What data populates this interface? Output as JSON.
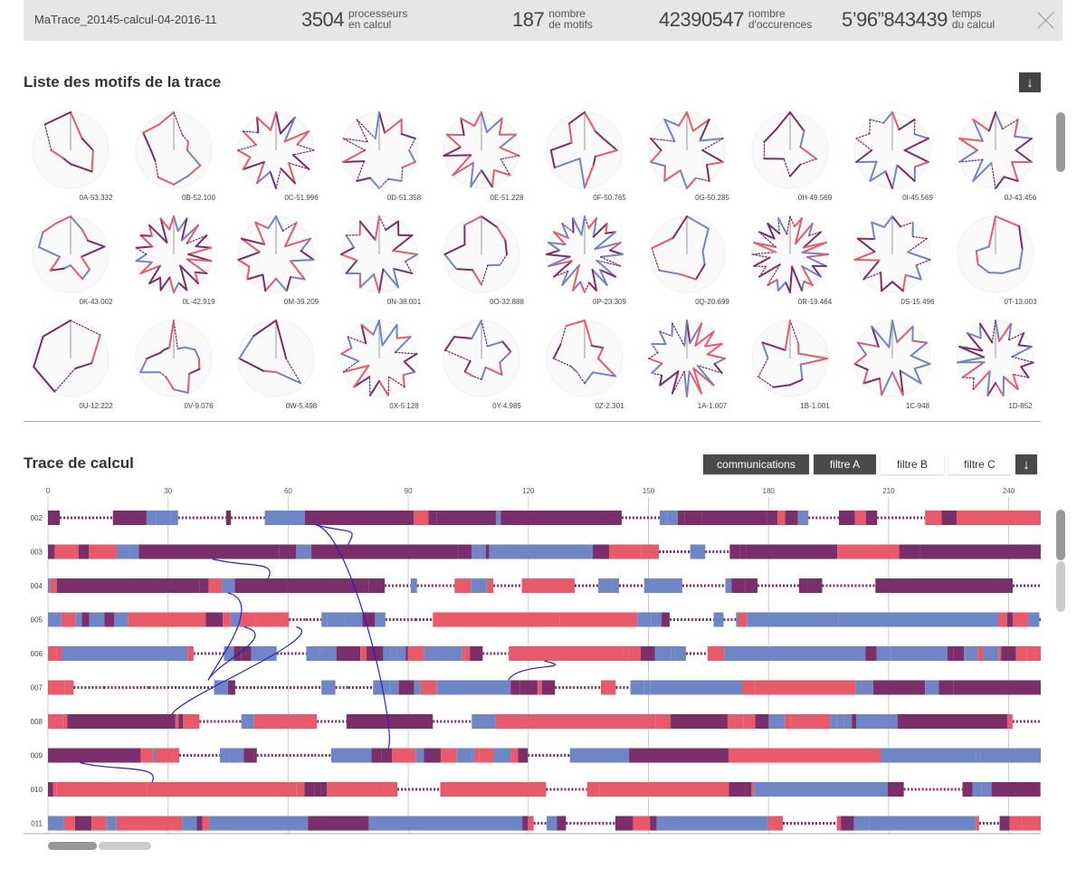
{
  "header": {
    "trace_name": "MaTrace_20145-calcul-04-2016-11",
    "stats": [
      {
        "value": "3504",
        "label_line1": "processeurs",
        "label_line2": "en calcul"
      },
      {
        "value": "187",
        "label_line1": "nombre",
        "label_line2": "de motifs"
      },
      {
        "value": "42390547",
        "label_line1": "nombre",
        "label_line2": "d'occurences"
      },
      {
        "value": "5’96”843439",
        "label_line1": "temps",
        "label_line2": "du calcul"
      }
    ],
    "close_icon": "close-x-icon"
  },
  "motifs_section": {
    "title": "Liste des motifs de la trace",
    "download_icon": "arrow-down-icon",
    "download_glyph": "↓",
    "scroll_position": 0.1,
    "motifs": [
      {
        "label": "0A-53.332",
        "spikes": 8
      },
      {
        "label": "0B-52.100",
        "spikes": 12
      },
      {
        "label": "0C-51.996",
        "spikes": 24
      },
      {
        "label": "0D-51.358",
        "spikes": 20
      },
      {
        "label": "0E-51.228",
        "spikes": 22
      },
      {
        "label": "0F-50.765",
        "spikes": 12
      },
      {
        "label": "0G-50.285",
        "spikes": 20
      },
      {
        "label": "0H-49.569",
        "spikes": 10
      },
      {
        "label": "0I-45.569",
        "spikes": 20
      },
      {
        "label": "0J-43.456",
        "spikes": 20
      },
      {
        "label": "0K-43.002",
        "spikes": 14
      },
      {
        "label": "0L-42.919",
        "spikes": 36
      },
      {
        "label": "0M-39.209",
        "spikes": 22
      },
      {
        "label": "0N-38.001",
        "spikes": 24
      },
      {
        "label": "0O-32.888",
        "spikes": 12
      },
      {
        "label": "0P-23.309",
        "spikes": 40
      },
      {
        "label": "0Q-20.699",
        "spikes": 9
      },
      {
        "label": "0R-19.464",
        "spikes": 40
      },
      {
        "label": "0S-15.496",
        "spikes": 22
      },
      {
        "label": "0T-13.003",
        "spikes": 9
      },
      {
        "label": "0U-12.222",
        "spikes": 7
      },
      {
        "label": "0V-9.076",
        "spikes": 16
      },
      {
        "label": "0W-5.498",
        "spikes": 8
      },
      {
        "label": "0X-5.128",
        "spikes": 26
      },
      {
        "label": "0Y-4.985",
        "spikes": 14
      },
      {
        "label": "0Z-2.301",
        "spikes": 12
      },
      {
        "label": "1A-1.007",
        "spikes": 32
      },
      {
        "label": "1B-1.001",
        "spikes": 12
      },
      {
        "label": "1C-948",
        "spikes": 22
      },
      {
        "label": "1D-852",
        "spikes": 30
      }
    ]
  },
  "trace_section": {
    "title": "Trace de calcul",
    "filters": [
      {
        "label": "communications",
        "active": true
      },
      {
        "label": "filtre A",
        "active": true
      },
      {
        "label": "filtre B",
        "active": false
      },
      {
        "label": "filtre C",
        "active": false
      }
    ],
    "download_glyph": "↓",
    "x_ticks": [
      "0",
      "30",
      "60",
      "90",
      "120",
      "150",
      "180",
      "210",
      "240"
    ],
    "x_max": 248,
    "rows": [
      "002",
      "003",
      "004",
      "005",
      "006",
      "007",
      "008",
      "009",
      "010",
      "011"
    ],
    "colors": {
      "red": "#e85a6a",
      "blue": "#6f86c6",
      "purple": "#7a2e6a",
      "link": "#2222cc",
      "grid": "#cccccc"
    },
    "vscroll_position": 0.0,
    "hscroll_position": 0.0,
    "communications": [
      {
        "from_row": "002",
        "from_t": 67,
        "to_row": "003",
        "to_t": 75
      },
      {
        "from_row": "002",
        "from_t": 67,
        "to_row": "009",
        "to_t": 85
      },
      {
        "from_row": "003",
        "from_t": 41,
        "to_row": "004",
        "to_t": 55
      },
      {
        "from_row": "004",
        "from_t": 45,
        "to_row": "007",
        "to_t": 40
      },
      {
        "from_row": "005",
        "from_t": 49,
        "to_row": "007",
        "to_t": 40
      },
      {
        "from_row": "005",
        "from_t": 62,
        "to_row": "008",
        "to_t": 31
      },
      {
        "from_row": "006",
        "from_t": 124,
        "to_row": "007",
        "to_t": 115
      },
      {
        "from_row": "009",
        "from_t": 8,
        "to_row": "010",
        "to_t": 26
      }
    ]
  }
}
